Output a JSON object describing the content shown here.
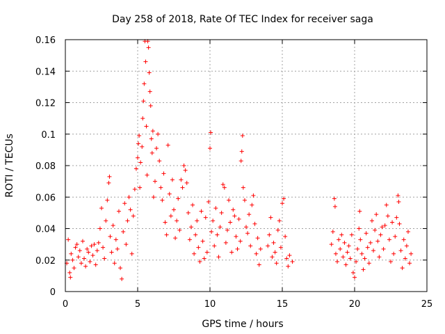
{
  "chart_data": {
    "type": "scatter",
    "title": "Day 258 of 2018, Rate Of TEC Index for receiver saga",
    "xlabel": "GPS time / hours",
    "ylabel": "ROTI / TECUs",
    "xlim": [
      0,
      25
    ],
    "ylim": [
      0,
      0.16
    ],
    "x_ticks": [
      0,
      5,
      10,
      15,
      20,
      25
    ],
    "x_tick_labels": [
      "0",
      "5",
      "10",
      "15",
      "20",
      "25"
    ],
    "y_ticks": [
      0,
      0.02,
      0.04,
      0.06,
      0.08,
      0.1,
      0.12,
      0.14,
      0.16
    ],
    "y_tick_labels": [
      "0",
      "0.02",
      "0.04",
      "0.06",
      "0.08",
      "0.1",
      "0.12",
      "0.14",
      "0.16"
    ],
    "grid": true,
    "marker": "+",
    "series_color": "#ff0000",
    "series": [
      {
        "name": "ROTI",
        "points": [
          [
            0.1,
            0.018
          ],
          [
            0.2,
            0.033
          ],
          [
            0.3,
            0.012
          ],
          [
            0.35,
            0.009
          ],
          [
            0.4,
            0.024
          ],
          [
            0.5,
            0.02
          ],
          [
            0.6,
            0.015
          ],
          [
            0.7,
            0.028
          ],
          [
            0.8,
            0.03
          ],
          [
            0.9,
            0.022
          ],
          [
            1.0,
            0.026
          ],
          [
            1.1,
            0.018
          ],
          [
            1.2,
            0.032
          ],
          [
            1.3,
            0.021
          ],
          [
            1.4,
            0.016
          ],
          [
            1.5,
            0.027
          ],
          [
            1.6,
            0.025
          ],
          [
            1.7,
            0.019
          ],
          [
            1.8,
            0.029
          ],
          [
            1.9,
            0.023
          ],
          [
            2.0,
            0.03
          ],
          [
            2.1,
            0.017
          ],
          [
            2.2,
            0.026
          ],
          [
            2.3,
            0.031
          ],
          [
            2.4,
            0.04
          ],
          [
            2.5,
            0.053
          ],
          [
            2.6,
            0.028
          ],
          [
            2.7,
            0.021
          ],
          [
            2.8,
            0.045
          ],
          [
            2.9,
            0.058
          ],
          [
            3.0,
            0.069
          ],
          [
            3.05,
            0.073
          ],
          [
            3.1,
            0.035
          ],
          [
            3.2,
            0.025
          ],
          [
            3.3,
            0.042
          ],
          [
            3.4,
            0.018
          ],
          [
            3.5,
            0.033
          ],
          [
            3.6,
            0.027
          ],
          [
            3.7,
            0.051
          ],
          [
            3.8,
            0.015
          ],
          [
            3.9,
            0.008
          ],
          [
            4.0,
            0.038
          ],
          [
            4.1,
            0.056
          ],
          [
            4.2,
            0.03
          ],
          [
            4.3,
            0.045
          ],
          [
            4.4,
            0.06
          ],
          [
            4.5,
            0.052
          ],
          [
            4.6,
            0.024
          ],
          [
            4.7,
            0.048
          ],
          [
            4.8,
            0.065
          ],
          [
            4.9,
            0.078
          ],
          [
            5.0,
            0.085
          ],
          [
            5.05,
            0.094
          ],
          [
            5.1,
            0.099
          ],
          [
            5.15,
            0.066
          ],
          [
            5.2,
            0.082
          ],
          [
            5.3,
            0.092
          ],
          [
            5.35,
            0.11
          ],
          [
            5.4,
            0.121
          ],
          [
            5.45,
            0.132
          ],
          [
            5.5,
            0.159
          ],
          [
            5.55,
            0.146
          ],
          [
            5.6,
            0.105
          ],
          [
            5.65,
            0.074
          ],
          [
            5.7,
            0.159
          ],
          [
            5.75,
            0.155
          ],
          [
            5.8,
            0.139
          ],
          [
            5.85,
            0.127
          ],
          [
            5.9,
            0.118
          ],
          [
            5.95,
            0.097
          ],
          [
            6.0,
            0.088
          ],
          [
            6.05,
            0.102
          ],
          [
            6.1,
            0.06
          ],
          [
            6.2,
            0.07
          ],
          [
            6.3,
            0.091
          ],
          [
            6.4,
            0.1
          ],
          [
            6.5,
            0.083
          ],
          [
            6.6,
            0.066
          ],
          [
            6.7,
            0.058
          ],
          [
            6.8,
            0.075
          ],
          [
            6.9,
            0.044
          ],
          [
            7.0,
            0.036
          ],
          [
            7.1,
            0.093
          ],
          [
            7.2,
            0.062
          ],
          [
            7.3,
            0.048
          ],
          [
            7.4,
            0.071
          ],
          [
            7.5,
            0.052
          ],
          [
            7.6,
            0.034
          ],
          [
            7.7,
            0.045
          ],
          [
            7.8,
            0.059
          ],
          [
            7.9,
            0.039
          ],
          [
            8.0,
            0.071
          ],
          [
            8.1,
            0.066
          ],
          [
            8.2,
            0.08
          ],
          [
            8.3,
            0.077
          ],
          [
            8.4,
            0.069
          ],
          [
            8.5,
            0.05
          ],
          [
            8.6,
            0.033
          ],
          [
            8.7,
            0.041
          ],
          [
            8.8,
            0.055
          ],
          [
            8.9,
            0.024
          ],
          [
            9.0,
            0.036
          ],
          [
            9.1,
            0.045
          ],
          [
            9.2,
            0.028
          ],
          [
            9.3,
            0.019
          ],
          [
            9.4,
            0.051
          ],
          [
            9.5,
            0.032
          ],
          [
            9.6,
            0.021
          ],
          [
            9.7,
            0.047
          ],
          [
            9.8,
            0.025
          ],
          [
            9.9,
            0.057
          ],
          [
            10.0,
            0.091
          ],
          [
            10.05,
            0.101
          ],
          [
            10.1,
            0.038
          ],
          [
            10.2,
            0.045
          ],
          [
            10.3,
            0.029
          ],
          [
            10.4,
            0.053
          ],
          [
            10.5,
            0.036
          ],
          [
            10.6,
            0.022
          ],
          [
            10.7,
            0.041
          ],
          [
            10.8,
            0.05
          ],
          [
            10.9,
            0.068
          ],
          [
            11.0,
            0.066
          ],
          [
            11.1,
            0.031
          ],
          [
            11.2,
            0.039
          ],
          [
            11.3,
            0.058
          ],
          [
            11.4,
            0.044
          ],
          [
            11.5,
            0.025
          ],
          [
            11.6,
            0.052
          ],
          [
            11.7,
            0.048
          ],
          [
            11.8,
            0.035
          ],
          [
            11.9,
            0.027
          ],
          [
            12.0,
            0.046
          ],
          [
            12.1,
            0.032
          ],
          [
            12.15,
            0.083
          ],
          [
            12.2,
            0.089
          ],
          [
            12.25,
            0.099
          ],
          [
            12.3,
            0.066
          ],
          [
            12.4,
            0.058
          ],
          [
            12.5,
            0.041
          ],
          [
            12.6,
            0.037
          ],
          [
            12.7,
            0.049
          ],
          [
            12.8,
            0.029
          ],
          [
            12.9,
            0.055
          ],
          [
            13.0,
            0.061
          ],
          [
            13.1,
            0.043
          ],
          [
            13.2,
            0.024
          ],
          [
            13.3,
            0.034
          ],
          [
            13.4,
            0.017
          ],
          [
            13.5,
            0.027
          ],
          [
            14.0,
            0.029
          ],
          [
            14.1,
            0.036
          ],
          [
            14.2,
            0.047
          ],
          [
            14.3,
            0.022
          ],
          [
            14.4,
            0.031
          ],
          [
            14.5,
            0.025
          ],
          [
            14.6,
            0.018
          ],
          [
            14.7,
            0.039
          ],
          [
            14.8,
            0.045
          ],
          [
            14.9,
            0.028
          ],
          [
            15.0,
            0.056
          ],
          [
            15.1,
            0.059
          ],
          [
            15.2,
            0.035
          ],
          [
            15.3,
            0.021
          ],
          [
            15.4,
            0.016
          ],
          [
            15.5,
            0.023
          ],
          [
            15.7,
            0.019
          ],
          [
            18.4,
            0.03
          ],
          [
            18.5,
            0.038
          ],
          [
            18.6,
            0.059
          ],
          [
            18.65,
            0.054
          ],
          [
            18.7,
            0.024
          ],
          [
            18.8,
            0.019
          ],
          [
            18.9,
            0.033
          ],
          [
            19.0,
            0.027
          ],
          [
            19.1,
            0.036
          ],
          [
            19.2,
            0.022
          ],
          [
            19.3,
            0.031
          ],
          [
            19.4,
            0.017
          ],
          [
            19.5,
            0.025
          ],
          [
            19.6,
            0.029
          ],
          [
            19.7,
            0.021
          ],
          [
            19.8,
            0.036
          ],
          [
            19.9,
            0.012
          ],
          [
            20.0,
            0.009
          ],
          [
            20.1,
            0.019
          ],
          [
            20.2,
            0.027
          ],
          [
            20.3,
            0.04
          ],
          [
            20.35,
            0.051
          ],
          [
            20.4,
            0.033
          ],
          [
            20.5,
            0.024
          ],
          [
            20.6,
            0.014
          ],
          [
            20.7,
            0.021
          ],
          [
            20.8,
            0.037
          ],
          [
            20.9,
            0.028
          ],
          [
            21.0,
            0.018
          ],
          [
            21.1,
            0.031
          ],
          [
            21.2,
            0.045
          ],
          [
            21.3,
            0.026
          ],
          [
            21.4,
            0.039
          ],
          [
            21.5,
            0.049
          ],
          [
            21.6,
            0.032
          ],
          [
            21.7,
            0.022
          ],
          [
            21.8,
            0.036
          ],
          [
            21.9,
            0.041
          ],
          [
            22.0,
            0.027
          ],
          [
            22.1,
            0.042
          ],
          [
            22.2,
            0.055
          ],
          [
            22.3,
            0.048
          ],
          [
            22.4,
            0.033
          ],
          [
            22.5,
            0.019
          ],
          [
            22.6,
            0.044
          ],
          [
            22.7,
            0.024
          ],
          [
            22.8,
            0.035
          ],
          [
            22.9,
            0.047
          ],
          [
            23.0,
            0.061
          ],
          [
            23.05,
            0.057
          ],
          [
            23.1,
            0.043
          ],
          [
            23.2,
            0.026
          ],
          [
            23.3,
            0.015
          ],
          [
            23.4,
            0.033
          ],
          [
            23.5,
            0.021
          ],
          [
            23.6,
            0.029
          ],
          [
            23.7,
            0.038
          ],
          [
            23.8,
            0.018
          ],
          [
            23.9,
            0.024
          ]
        ]
      }
    ]
  }
}
